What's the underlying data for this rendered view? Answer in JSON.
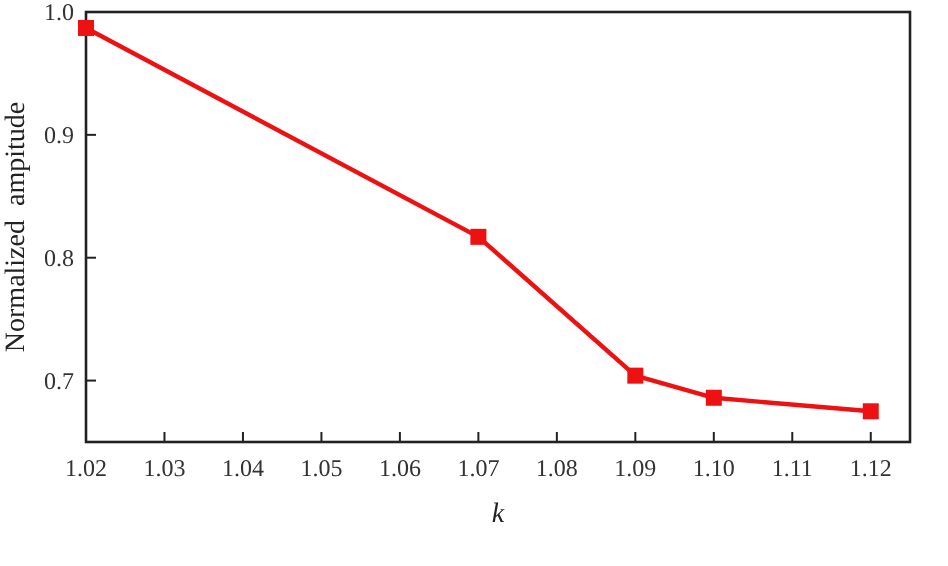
{
  "chart_data": {
    "type": "line",
    "xlabel": "k",
    "ylabel": "Normalized  ampitude",
    "x": [
      1.02,
      1.07,
      1.09,
      1.1,
      1.12
    ],
    "series": [
      {
        "color": "#ee1111",
        "values": [
          0.987,
          0.817,
          0.704,
          0.686,
          0.675
        ]
      }
    ],
    "xlim": [
      1.02,
      1.125
    ],
    "xticks": [
      1.02,
      1.03,
      1.04,
      1.05,
      1.06,
      1.07,
      1.08,
      1.09,
      {
        "value": 1.1,
        "label": "1.10"
      },
      1.11,
      1.12
    ],
    "ylim": [
      0.65,
      1.0
    ],
    "yticks": [
      0.7,
      0.8,
      0.9,
      {
        "value": 1.0,
        "label": "1.0"
      }
    ],
    "marker": "square",
    "line_style": "solid",
    "grid": false
  }
}
